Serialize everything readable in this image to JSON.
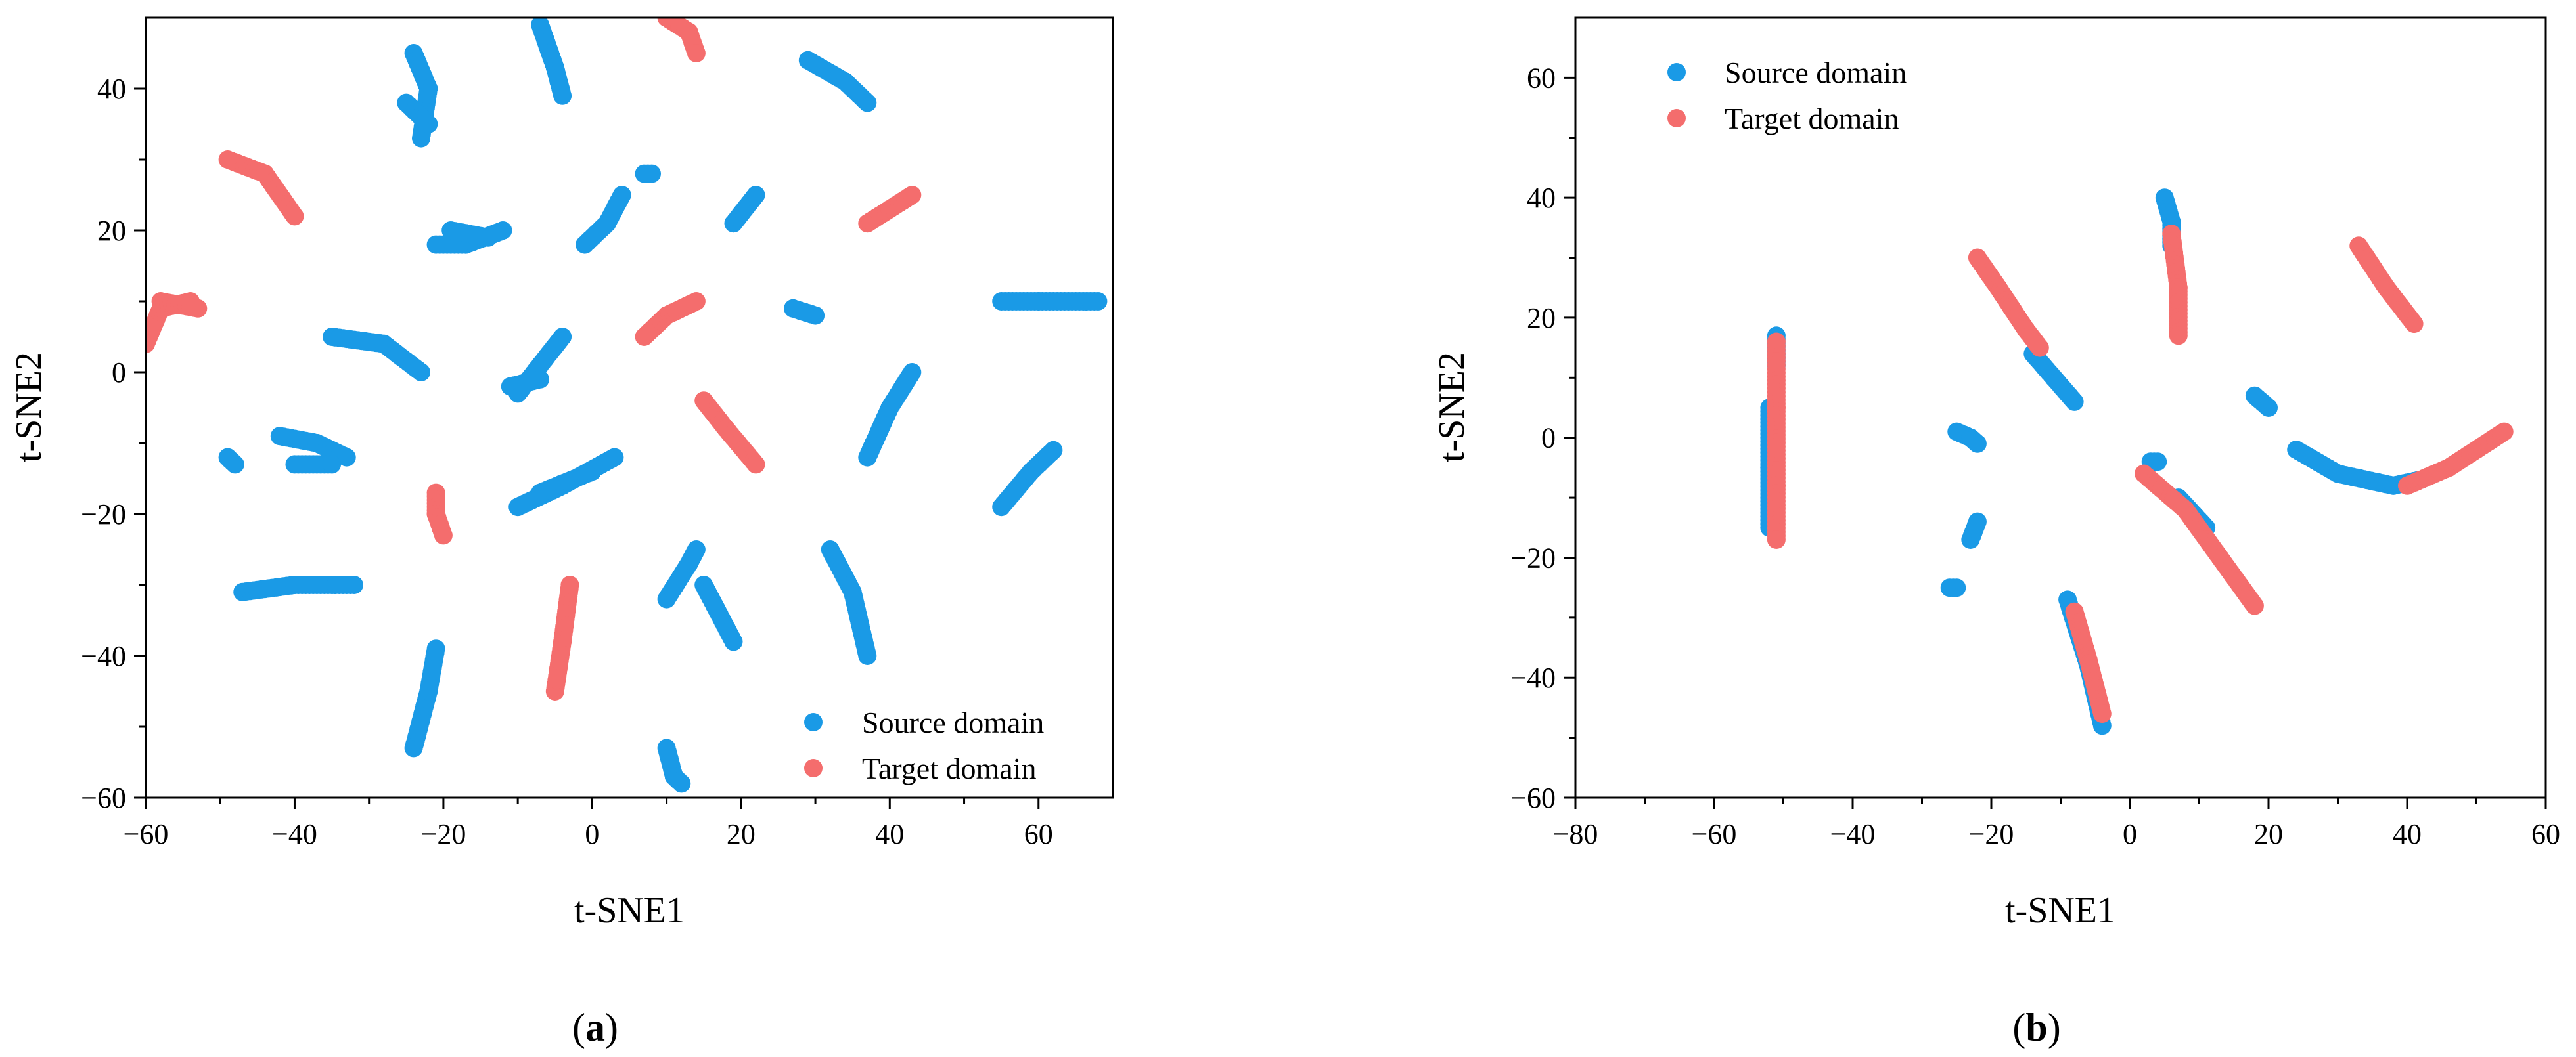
{
  "colors": {
    "source": "#1a9ae6",
    "target": "#f46d6d"
  },
  "chart_data": [
    {
      "panel": "a",
      "type": "scatter",
      "xlabel": "t-SNE1",
      "ylabel": "t-SNE2",
      "xlim": [
        -60,
        70
      ],
      "ylim": [
        -60,
        50
      ],
      "xticks": [
        -60,
        -40,
        -20,
        0,
        20,
        40,
        60
      ],
      "yticks": [
        -60,
        -40,
        -20,
        0,
        20,
        40
      ],
      "legend": {
        "position": "bottom-right",
        "entries": [
          "Source domain",
          "Target domain"
        ]
      },
      "series": [
        {
          "name": "Source domain",
          "color": "#1a9ae6",
          "segments": [
            [
              [
                -24,
                45
              ],
              [
                -22,
                40
              ],
              [
                -23,
                33
              ]
            ],
            [
              [
                -25,
                38
              ],
              [
                -22,
                35
              ]
            ],
            [
              [
                -7,
                49
              ],
              [
                -5,
                43
              ],
              [
                -4,
                39
              ]
            ],
            [
              [
                29,
                44
              ],
              [
                34,
                41
              ],
              [
                37,
                38
              ]
            ],
            [
              [
                7,
                28
              ],
              [
                8,
                28
              ]
            ],
            [
              [
                -1,
                18
              ],
              [
                2,
                21
              ],
              [
                4,
                25
              ]
            ],
            [
              [
                19,
                21
              ],
              [
                22,
                25
              ]
            ],
            [
              [
                -21,
                18
              ],
              [
                -17,
                18
              ],
              [
                -12,
                20
              ]
            ],
            [
              [
                -19,
                20
              ],
              [
                -14,
                19
              ]
            ],
            [
              [
                27,
                9
              ],
              [
                30,
                8
              ]
            ],
            [
              [
                55,
                10
              ],
              [
                60,
                10
              ],
              [
                68,
                10
              ]
            ],
            [
              [
                -35,
                5
              ],
              [
                -28,
                4
              ],
              [
                -23,
                0
              ]
            ],
            [
              [
                -10,
                -3
              ],
              [
                -7,
                1
              ],
              [
                -4,
                5
              ]
            ],
            [
              [
                -11,
                -2
              ],
              [
                -7,
                -1
              ]
            ],
            [
              [
                -49,
                -12
              ],
              [
                -48,
                -13
              ]
            ],
            [
              [
                -42,
                -9
              ],
              [
                -37,
                -10
              ],
              [
                -33,
                -12
              ]
            ],
            [
              [
                -40,
                -13
              ],
              [
                -35,
                -13
              ]
            ],
            [
              [
                -10,
                -19
              ],
              [
                -4,
                -16
              ],
              [
                3,
                -12
              ]
            ],
            [
              [
                -7,
                -17
              ],
              [
                0,
                -14
              ]
            ],
            [
              [
                37,
                -12
              ],
              [
                40,
                -5
              ],
              [
                43,
                0
              ]
            ],
            [
              [
                55,
                -19
              ],
              [
                59,
                -14
              ],
              [
                62,
                -11
              ]
            ],
            [
              [
                -47,
                -31
              ],
              [
                -40,
                -30
              ],
              [
                -32,
                -30
              ]
            ],
            [
              [
                -24,
                -53
              ],
              [
                -22,
                -45
              ],
              [
                -21,
                -39
              ]
            ],
            [
              [
                10,
                -32
              ],
              [
                13,
                -27
              ],
              [
                14,
                -25
              ]
            ],
            [
              [
                15,
                -30
              ],
              [
                19,
                -38
              ]
            ],
            [
              [
                32,
                -25
              ],
              [
                35,
                -31
              ],
              [
                37,
                -40
              ]
            ],
            [
              [
                10,
                -53
              ],
              [
                11,
                -57
              ],
              [
                12,
                -58
              ]
            ]
          ]
        },
        {
          "name": "Target domain",
          "color": "#f46d6d",
          "segments": [
            [
              [
                10,
                50
              ],
              [
                13,
                48
              ],
              [
                14,
                45
              ]
            ],
            [
              [
                -49,
                30
              ],
              [
                -44,
                28
              ],
              [
                -40,
                22
              ]
            ],
            [
              [
                -60,
                4
              ],
              [
                -58,
                9
              ],
              [
                -54,
                10
              ]
            ],
            [
              [
                -58,
                10
              ],
              [
                -53,
                9
              ]
            ],
            [
              [
                37,
                21
              ],
              [
                40,
                23
              ],
              [
                43,
                25
              ]
            ],
            [
              [
                7,
                5
              ],
              [
                10,
                8
              ],
              [
                14,
                10
              ]
            ],
            [
              [
                15,
                -4
              ],
              [
                18,
                -8
              ],
              [
                22,
                -13
              ]
            ],
            [
              [
                -21,
                -17
              ],
              [
                -21,
                -20
              ],
              [
                -20,
                -23
              ]
            ],
            [
              [
                -5,
                -45
              ],
              [
                -4,
                -38
              ],
              [
                -3,
                -30
              ]
            ]
          ]
        }
      ]
    },
    {
      "panel": "b",
      "type": "scatter",
      "xlabel": "t-SNE1",
      "ylabel": "t-SNE2",
      "xlim": [
        -80,
        60
      ],
      "ylim": [
        -60,
        70
      ],
      "xticks": [
        -80,
        -60,
        -40,
        -20,
        0,
        20,
        40,
        60
      ],
      "yticks": [
        -60,
        -40,
        -20,
        0,
        20,
        40,
        60
      ],
      "legend": {
        "position": "top-left",
        "entries": [
          "Source domain",
          "Target domain"
        ]
      },
      "series": [
        {
          "name": "Source domain",
          "color": "#1a9ae6",
          "segments": [
            [
              [
                -52,
                5
              ],
              [
                -52,
                -5
              ],
              [
                -52,
                -15
              ]
            ],
            [
              [
                -51,
                17
              ],
              [
                -51,
                12
              ]
            ],
            [
              [
                -25,
                1
              ],
              [
                -23,
                0
              ],
              [
                -22,
                -1
              ]
            ],
            [
              [
                -23,
                -17
              ],
              [
                -22,
                -14
              ]
            ],
            [
              [
                -26,
                -25
              ],
              [
                -25,
                -25
              ]
            ],
            [
              [
                -14,
                14
              ],
              [
                -11,
                10
              ],
              [
                -8,
                6
              ]
            ],
            [
              [
                5,
                40
              ],
              [
                6,
                36
              ],
              [
                6,
                32
              ]
            ],
            [
              [
                18,
                7
              ],
              [
                20,
                5
              ]
            ],
            [
              [
                24,
                -2
              ],
              [
                30,
                -6
              ],
              [
                38,
                -8
              ],
              [
                42,
                -7
              ]
            ],
            [
              [
                3,
                -4
              ],
              [
                4,
                -4
              ]
            ],
            [
              [
                -9,
                -27
              ],
              [
                -6,
                -38
              ],
              [
                -4,
                -48
              ]
            ],
            [
              [
                7,
                -10
              ],
              [
                11,
                -15
              ]
            ]
          ]
        },
        {
          "name": "Target domain",
          "color": "#f46d6d",
          "segments": [
            [
              [
                -51,
                16
              ],
              [
                -51,
                5
              ],
              [
                -51,
                -8
              ],
              [
                -51,
                -17
              ]
            ],
            [
              [
                -22,
                30
              ],
              [
                -19,
                25
              ],
              [
                -15,
                18
              ],
              [
                -13,
                15
              ]
            ],
            [
              [
                6,
                34
              ],
              [
                7,
                25
              ],
              [
                7,
                17
              ]
            ],
            [
              [
                33,
                32
              ],
              [
                37,
                25
              ],
              [
                41,
                19
              ]
            ],
            [
              [
                40,
                -8
              ],
              [
                46,
                -5
              ],
              [
                50,
                -2
              ],
              [
                54,
                1
              ]
            ],
            [
              [
                2,
                -6
              ],
              [
                8,
                -12
              ],
              [
                13,
                -20
              ],
              [
                18,
                -28
              ]
            ],
            [
              [
                -8,
                -29
              ],
              [
                -6,
                -37
              ],
              [
                -4,
                -46
              ]
            ]
          ]
        }
      ]
    }
  ],
  "panels": [
    {
      "tag_open": "(",
      "tag_letter": "a",
      "tag_close": ")"
    },
    {
      "tag_open": "(",
      "tag_letter": "b",
      "tag_close": ")"
    }
  ]
}
